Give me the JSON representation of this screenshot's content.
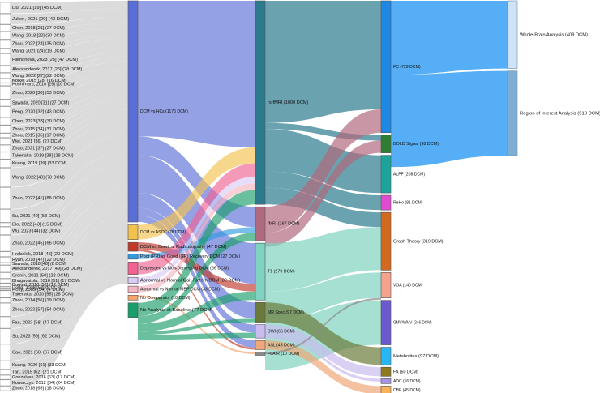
{
  "studies": [
    {
      "label": "Liu, 2021 [19] (45 DCM)",
      "n": 45,
      "to": "DCM vs HCs"
    },
    {
      "label": "Julien, 2021 [20] (43 DCM)",
      "n": 43,
      "to": "DCM vs HCs"
    },
    {
      "label": "Chen, 2018 [21] (27 DCM)",
      "n": 27,
      "to": "DCM vs HCs"
    },
    {
      "label": "Wang, 2018 [22] (30 DCM)",
      "n": 30,
      "to": "DCM vs HCs"
    },
    {
      "label": "Zhou, 2022 [23] (35 DCM)",
      "n": 35,
      "to": "DCM vs HCs"
    },
    {
      "label": "Wang, 2021 [24] (19 DCM)",
      "n": 19,
      "to": "DCM vs HCs"
    },
    {
      "label": "Filimonova, 2023 [25] (47 DCM)",
      "n": 47,
      "to": "DCM vs HCs"
    },
    {
      "label": "Aleksanderek, 2017 [26] (28 DCM)",
      "n": 28,
      "to": "DCM vs HCs"
    },
    {
      "label": "Wang, 2022 [27] (22 DCM)",
      "n": 22,
      "to": "DCM vs HCs"
    },
    {
      "label": "Kolke, 2015 [28] (16 DCM)",
      "n": 16,
      "to": "DCM vs HCs"
    },
    {
      "label": "Hoshimaru, 2010 [29] (10 DCM)",
      "n": 10,
      "to": "DCM vs HCs"
    },
    {
      "label": "Zhao, 2020 [30] (53 DCM)",
      "n": 53,
      "to": "DCM vs HCs"
    },
    {
      "label": "Sawada, 2020 [31] (27 DCM)",
      "n": 27,
      "to": "DCM vs HCs"
    },
    {
      "label": "Peng, 2020 [32] (43 DCM)",
      "n": 43,
      "to": "DCM vs HCs"
    },
    {
      "label": "Chen, 2023 [33] (30 DCM)",
      "n": 30,
      "to": "DCM vs HCs"
    },
    {
      "label": "Zhou, 2015 [34] (31 DCM)",
      "n": 31,
      "to": "DCM vs HCs"
    },
    {
      "label": "Zhou, 2015 [35] (17 DCM)",
      "n": 17,
      "to": "DCM vs HCs"
    },
    {
      "label": "Wei, 2021 [36] (27 DCM)",
      "n": 27,
      "to": "DCM vs HCs"
    },
    {
      "label": "Zhao, 2021 [37] (27 DCM)",
      "n": 27,
      "to": "DCM vs HCs"
    },
    {
      "label": "Takenaka, 2019 [38] (28 DCM)",
      "n": 28,
      "to": "DCM vs HCs"
    },
    {
      "label": "Kuang, 2019 [39] (33 DCM)",
      "n": 33,
      "to": "DCM vs HCs"
    },
    {
      "label": "Wang, 2022 [40] (78 DCM)",
      "n": 78,
      "to": "DCM vs HCs"
    },
    {
      "label": "Zhao, 2022 [41] (88 DCM)",
      "n": 88,
      "to": "DCM vs HCs"
    },
    {
      "label": "Su, 2021 [42] (53 DCM)",
      "n": 53,
      "to": "DCM vs HCs"
    },
    {
      "label": "Elo, 2022 [43] (15 DCM)",
      "n": 15,
      "to": "DCM vs HCs"
    },
    {
      "label": "Wu, 2023 [44] (32 DCM)",
      "n": 32,
      "to": "DCM vs HCs"
    },
    {
      "label": "Zhao, 2022 [45] (66 DCM)",
      "n": 66,
      "to": "DCM vs HCs"
    },
    {
      "label": "Hrabalek, 2018 [46] (20 DCM)",
      "n": 20,
      "to": "DCM vs HCs"
    },
    {
      "label": "Ryan, 2018 [47] (22 DCM)",
      "n": 22,
      "to": "DCM vs HCs"
    },
    {
      "label": "Sawada, 2018 [48] (8 DCM)",
      "n": 8,
      "to": "DCM vs HCs"
    },
    {
      "label": "Aleksanderek, 2017 [49] (28 DCM)",
      "n": 28,
      "to": "DCM vs HCs"
    },
    {
      "label": "Cronin, 2021 [50] (23 DCM)",
      "n": 23,
      "to": "DCM vs HCs"
    },
    {
      "label": "Bhagavatula, 2016 [51] (17 DCM)",
      "n": 17,
      "to": "DCM vs HCs"
    },
    {
      "label": "Dugual, 2010 [52] (12 DCM)",
      "n": 12,
      "to": "DCM vs HCs"
    },
    {
      "label": "Dong, 2008 [53] (8 DCM)",
      "n": 8,
      "to": "DCM vs HCs"
    },
    {
      "label": "Holly, 2009 [54] (4 DCM)",
      "n": 4,
      "to": "DCM vs HCs"
    },
    {
      "label": "Takenaka, 2020 [55] (28 DCM)",
      "n": 28,
      "to": "DCM vs HCs"
    },
    {
      "label": "Zhou, 2014 [56] (19 DCM)",
      "n": 19,
      "to": "DCM vs HCs"
    },
    {
      "label": "Zhou, 2022 [57] (54 DCM)",
      "n": 54,
      "to": "DCM vs HCs"
    },
    {
      "label": "Fan, 2022 [58] (47 DCM)",
      "n": 47,
      "to": "DCM vs HCs"
    },
    {
      "label": "Su, 2023 [59] (62 DCM)",
      "n": 62,
      "to": "DCM vs HCs"
    },
    {
      "label": "Cao, 2021 [60] (67 DCM)",
      "n": 67,
      "to": "DCM vs HCs"
    },
    {
      "label": "Kuang, 2020 [61] (33 DCM)",
      "n": 33,
      "to": "DCM vs HCs"
    },
    {
      "label": "Tan, 2015 [62] (21 DCM)",
      "n": 21,
      "to": "DCM vs HCs"
    },
    {
      "label": "Gonzalves, 2016 [63] (17 DCM)",
      "n": 17,
      "to": "DCM vs HCs"
    },
    {
      "label": "Kowalczyk, 2012 [64] (24 DCM)",
      "n": 24,
      "to": "DCM vs HCs"
    },
    {
      "label": "Zhou, 2018 [65] (18 DCM)",
      "n": 18,
      "to": "DCM vs HCs"
    }
  ],
  "comparisons": [
    {
      "label": "DCM vs HCs (1175 DCM)",
      "key": "DCM vs HCs",
      "n": 1175,
      "color": "#5a6fd6"
    },
    {
      "label": "DCM vs ASCC (78 DCM)",
      "key": "DCM vs ASCC",
      "n": 78,
      "color": "#f2c14e"
    },
    {
      "label": "DCM vs Cervical Radiculopathy (47 DCM)",
      "key": "DCM vs CR",
      "n": 47,
      "color": "#c0392b"
    },
    {
      "label": "Poor (PR) vs Good (GR) Recovery DCM (27 DCM)",
      "key": "PR vs GR",
      "n": 27,
      "color": "#2f9be0"
    },
    {
      "label": "Depressed vs Non-Depressed DCM (66 DCM)",
      "key": "Dep vs NonDep",
      "n": 66,
      "color": "#f06292"
    },
    {
      "label": "Abnormal vs Normal Gait Pattern DCM (32 DCM)",
      "key": "Gait",
      "n": 32,
      "color": "#d9ccf5"
    },
    {
      "label": "Abnormal vs Normal MEP DCM (33 DCM)",
      "key": "MEP",
      "n": 33,
      "color": "#f4b6c2"
    },
    {
      "label": "No Comparator (10 DCM)",
      "key": "NoComp",
      "n": 10,
      "color": "#f5a46b"
    },
    {
      "label": "No Analysis at Baseline (77 DCM)",
      "key": "NoBase",
      "n": 77,
      "color": "#1a9e6a"
    }
  ],
  "modalities": [
    {
      "label": "rs-fMRI (1000 DCM)",
      "key": "rs-fMRI",
      "n": 1000,
      "color": "#2b7a8e"
    },
    {
      "label": "fMRI (167 DCM)",
      "key": "fMRI",
      "n": 167,
      "color": "#b06a7e"
    },
    {
      "label": "T1 (279 DCM)",
      "key": "T1",
      "n": 279,
      "color": "#7fd3c0"
    },
    {
      "label": "MR Spec (97 DCM)",
      "key": "MRSpec",
      "n": 97,
      "color": "#6b7a3a"
    },
    {
      "label": "DWI (66 DCM)",
      "key": "DWI",
      "n": 66,
      "color": "#cbbcf0"
    },
    {
      "label": "ASL (45 DCM)",
      "key": "ASL",
      "n": 45,
      "color": "#f0a878"
    },
    {
      "label": "FLAIR (10 DCM)",
      "key": "FLAIR",
      "n": 10,
      "color": "#8a8a8a"
    }
  ],
  "analyses": [
    {
      "label": "FC (729 DCM)",
      "key": "FC",
      "n": 729,
      "color": "#1e88e5"
    },
    {
      "label": "BOLD Signal (98 DCM)",
      "key": "BOLD",
      "n": 98,
      "color": "#2e7d32"
    },
    {
      "label": "ALFF (208 DCM)",
      "key": "ALFF",
      "n": 208,
      "color": "#1ba39c"
    },
    {
      "label": "ReHo (81 DCM)",
      "key": "ReHo",
      "n": 81,
      "color": "#e14bd0"
    },
    {
      "label": "Graph Theory (319 DCM)",
      "key": "Graph",
      "n": 319,
      "color": "#d2691e"
    },
    {
      "label": "VOA (140 DCM)",
      "key": "VOA",
      "n": 140,
      "color": "#f4a28c"
    },
    {
      "label": "GMV/WMV (246 DCM)",
      "key": "GMV",
      "n": 246,
      "color": "#6a5acd"
    },
    {
      "label": "Metabolites (97 DCM)",
      "key": "Metab",
      "n": 97,
      "color": "#29b6f6"
    },
    {
      "label": "FA (50 DCM)",
      "key": "FA",
      "n": 50,
      "color": "#8d7a1f"
    },
    {
      "label": "ADC (16 DCM)",
      "key": "ADC",
      "n": 16,
      "color": "#a991e6"
    },
    {
      "label": "CBF (45 DCM)",
      "key": "CBF",
      "n": 45,
      "color": "#f9b25a"
    }
  ],
  "fc_types": [
    {
      "label": "Whole-Brain Analysis (409 DCM)",
      "key": "WBA",
      "n": 409,
      "color": "#cfe3f7"
    },
    {
      "label": "Region of Interest Analysis (510 DCM)",
      "key": "ROI",
      "n": 510,
      "color": "#7faed3"
    }
  ],
  "links_comparison_to_modality": [
    {
      "from": "DCM vs HCs",
      "to": "rs-fMRI",
      "n": 720
    },
    {
      "from": "DCM vs HCs",
      "to": "fMRI",
      "n": 100
    },
    {
      "from": "DCM vs HCs",
      "to": "T1",
      "n": 200
    },
    {
      "from": "DCM vs HCs",
      "to": "MRSpec",
      "n": 80
    },
    {
      "from": "DCM vs HCs",
      "to": "DWI",
      "n": 40
    },
    {
      "from": "DCM vs HCs",
      "to": "ASL",
      "n": 35
    },
    {
      "from": "DCM vs ASCC",
      "to": "rs-fMRI",
      "n": 78
    },
    {
      "from": "DCM vs CR",
      "to": "T1",
      "n": 37
    },
    {
      "from": "DCM vs CR",
      "to": "ASL",
      "n": 10
    },
    {
      "from": "PR vs GR",
      "to": "fMRI",
      "n": 27
    },
    {
      "from": "Dep vs NonDep",
      "to": "rs-fMRI",
      "n": 66
    },
    {
      "from": "Gait",
      "to": "rs-fMRI",
      "n": 32
    },
    {
      "from": "MEP",
      "to": "rs-fMRI",
      "n": 33
    },
    {
      "from": "NoComp",
      "to": "FLAIR",
      "n": 10
    },
    {
      "from": "NoBase",
      "to": "rs-fMRI",
      "n": 71
    },
    {
      "from": "NoBase",
      "to": "fMRI",
      "n": 40
    },
    {
      "from": "NoBase",
      "to": "T1",
      "n": 42
    },
    {
      "from": "NoBase",
      "to": "MRSpec",
      "n": 17
    },
    {
      "from": "NoBase",
      "to": "DWI",
      "n": 26
    }
  ],
  "links_modality_to_analysis": [
    {
      "from": "rs-fMRI",
      "to": "FC",
      "n": 600
    },
    {
      "from": "rs-fMRI",
      "to": "BOLD",
      "n": 30
    },
    {
      "from": "rs-fMRI",
      "to": "ALFF",
      "n": 208
    },
    {
      "from": "rs-fMRI",
      "to": "ReHo",
      "n": 81
    },
    {
      "from": "rs-fMRI",
      "to": "Graph",
      "n": 81
    },
    {
      "from": "fMRI",
      "to": "FC",
      "n": 129
    },
    {
      "from": "fMRI",
      "to": "BOLD",
      "n": 68
    },
    {
      "from": "T1",
      "to": "Graph",
      "n": 238
    },
    {
      "from": "T1",
      "to": "VOA",
      "n": 140
    },
    {
      "from": "T1",
      "to": "GMV",
      "n": 246
    },
    {
      "from": "MRSpec",
      "to": "Metab",
      "n": 97
    },
    {
      "from": "DWI",
      "to": "FA",
      "n": 50
    },
    {
      "from": "DWI",
      "to": "ADC",
      "n": 16
    },
    {
      "from": "ASL",
      "to": "CBF",
      "n": 45
    },
    {
      "from": "FLAIR",
      "to": "VOA",
      "n": 10
    }
  ],
  "links_analysis_to_fc_type": [
    {
      "from": "FC",
      "to": "WBA",
      "n": 409
    },
    {
      "from": "FC",
      "to": "ROI",
      "n": 510
    }
  ]
}
